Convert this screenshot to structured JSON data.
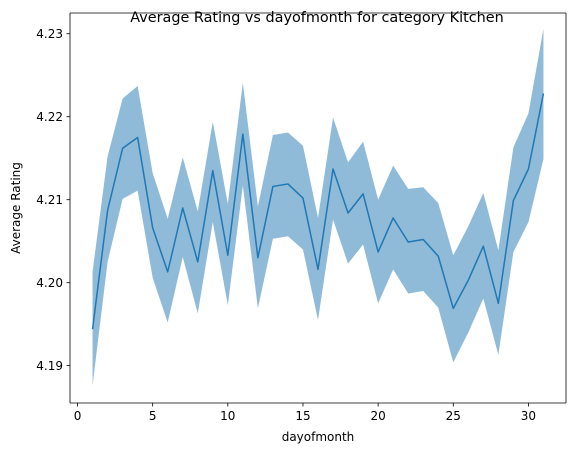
{
  "chart_data": {
    "type": "line",
    "title": "Average Rating vs dayofmonth for category Kitchen",
    "xlabel": "dayofmonth",
    "ylabel": "Average Rating",
    "xlim": [
      -0.5,
      32.5
    ],
    "ylim": [
      4.1855,
      4.2325
    ],
    "xticks": [
      0,
      5,
      10,
      15,
      20,
      25,
      30
    ],
    "xtick_labels": [
      "0",
      "5",
      "10",
      "15",
      "20",
      "25",
      "30"
    ],
    "yticks": [
      4.19,
      4.2,
      4.21,
      4.22,
      4.23
    ],
    "ytick_labels": [
      "4.19",
      "4.20",
      "4.21",
      "4.22",
      "4.23"
    ],
    "grid": false,
    "legend": "none",
    "series": [
      {
        "x": [
          1,
          2,
          3,
          4,
          5,
          6,
          7,
          8,
          9,
          10,
          11,
          12,
          13,
          14,
          15,
          16,
          17,
          18,
          19,
          20,
          21,
          22,
          23,
          24,
          25,
          26,
          27,
          28,
          29,
          30,
          31
        ],
        "values": [
          4.1944,
          4.2087,
          4.2162,
          4.2175,
          4.2066,
          4.2013,
          4.209,
          4.2025,
          4.2135,
          4.2033,
          4.2179,
          4.203,
          4.2116,
          4.2119,
          4.2102,
          4.2016,
          4.2137,
          4.2084,
          4.2107,
          4.2037,
          4.2078,
          4.2049,
          4.2052,
          4.2032,
          4.1969,
          4.2003,
          4.2044,
          4.1975,
          4.2099,
          4.2137,
          4.2228
        ],
        "lower": [
          4.1876,
          4.2025,
          4.2101,
          4.2111,
          4.2006,
          4.1952,
          4.2031,
          4.1963,
          4.2073,
          4.1973,
          4.2117,
          4.1969,
          4.2053,
          4.2056,
          4.204,
          4.1955,
          4.2076,
          4.2023,
          4.2046,
          4.1975,
          4.2016,
          4.1987,
          4.199,
          4.197,
          4.1904,
          4.194,
          4.1981,
          4.1913,
          4.2037,
          4.2073,
          4.2149
        ],
        "upper": [
          4.2013,
          4.2152,
          4.2222,
          4.2237,
          4.2132,
          4.2077,
          4.2151,
          4.2086,
          4.2194,
          4.2095,
          4.2241,
          4.2092,
          4.2178,
          4.2181,
          4.2165,
          4.2078,
          4.2199,
          4.2145,
          4.217,
          4.21,
          4.2141,
          4.2113,
          4.2115,
          4.2096,
          4.2033,
          4.2068,
          4.2108,
          4.2039,
          4.2163,
          4.2204,
          4.2306
        ]
      }
    ],
    "colors": {
      "line": "#1f77b4",
      "band": "#1f77b4",
      "axes": "#000000"
    }
  }
}
